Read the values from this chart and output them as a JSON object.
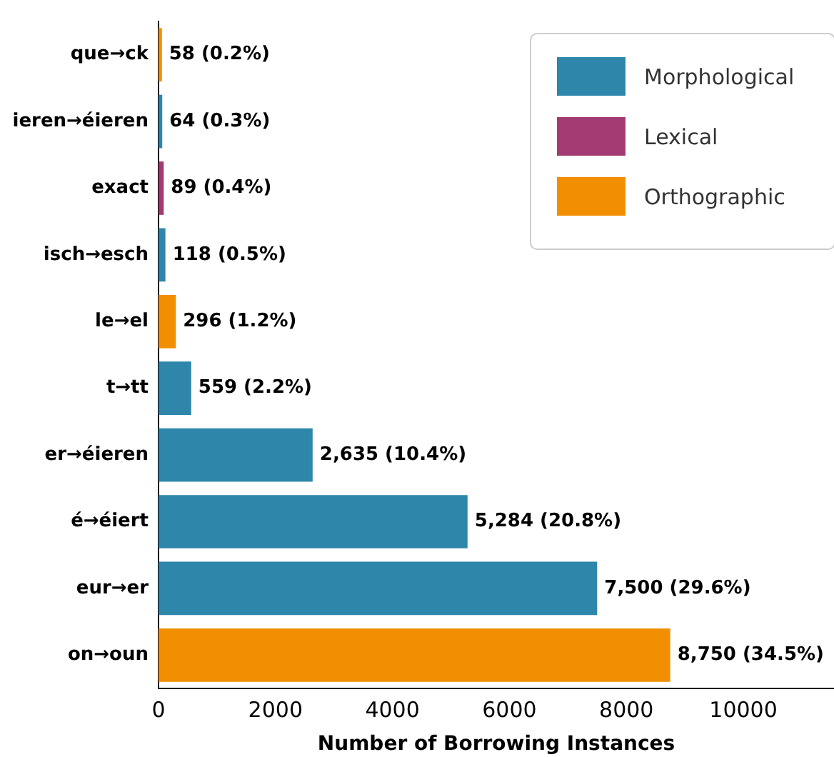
{
  "chart_data": {
    "type": "bar",
    "orientation": "horizontal",
    "xlabel": "Number of Borrowing Instances",
    "categories": [
      "que→ck",
      "ieren→éieren",
      "exact",
      "isch→esch",
      "le→el",
      "t→tt",
      "er→éieren",
      "é→éiert",
      "eur→er",
      "on→oun"
    ],
    "series": [
      {
        "name": "Morphological",
        "color": "#2e86ab",
        "values": [
          null,
          64,
          null,
          118,
          null,
          559,
          2635,
          5284,
          7500,
          null
        ],
        "value_labels": [
          null,
          "64 (0.3%)",
          null,
          "118 (0.5%)",
          null,
          "559 (2.2%)",
          "2,635 (10.4%)",
          "5,284 (20.8%)",
          "7,500 (29.6%)",
          null
        ]
      },
      {
        "name": "Lexical",
        "color": "#a23b72",
        "values": [
          null,
          null,
          89,
          null,
          null,
          null,
          null,
          null,
          null,
          null
        ],
        "value_labels": [
          null,
          null,
          "89 (0.4%)",
          null,
          null,
          null,
          null,
          null,
          null,
          null
        ]
      },
      {
        "name": "Orthographic",
        "color": "#f18f01",
        "values": [
          58,
          null,
          null,
          null,
          296,
          null,
          null,
          null,
          null,
          8750
        ],
        "value_labels": [
          "58 (0.2%)",
          null,
          null,
          null,
          "296 (1.2%)",
          null,
          null,
          null,
          null,
          "8,750 (34.5%)"
        ]
      }
    ],
    "xlim": [
      0,
      11550
    ],
    "xticks": [
      0,
      2000,
      4000,
      6000,
      8000,
      10000
    ],
    "grid": false,
    "legend": "top right"
  }
}
